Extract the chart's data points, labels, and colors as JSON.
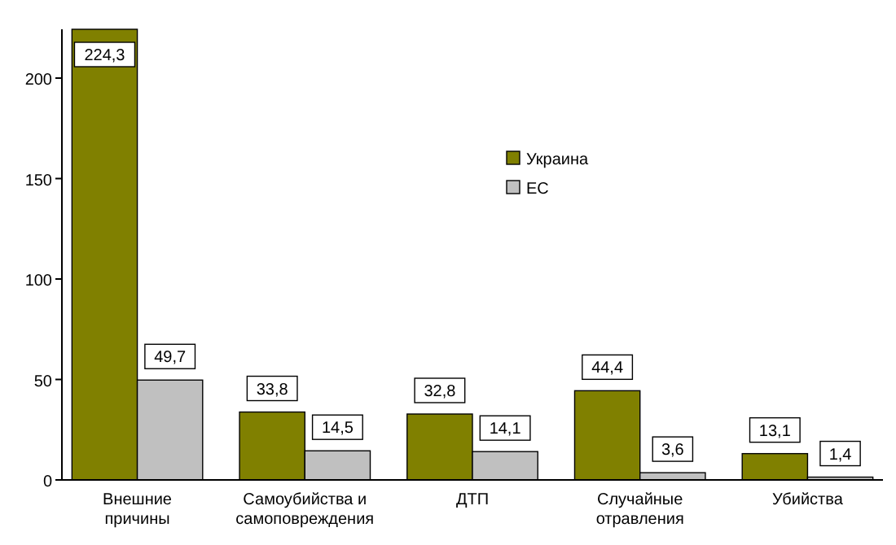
{
  "chart_data": {
    "type": "bar",
    "categories": [
      "Внешние причины",
      "Самоубийства и самоповреждения",
      "ДТП",
      "Случайные отравления",
      "Убийства"
    ],
    "series": [
      {
        "name": "Украина",
        "color": "#808000",
        "values": [
          224.3,
          33.8,
          32.8,
          44.4,
          13.1
        ],
        "value_labels": [
          "224,3",
          "33,8",
          "32,8",
          "44,4",
          "13,1"
        ]
      },
      {
        "name": "ЕС",
        "color": "#c0c0c0",
        "values": [
          49.7,
          14.5,
          14.1,
          3.6,
          1.4
        ],
        "value_labels": [
          "49,7",
          "14,5",
          "14,1",
          "3,6",
          "1,4"
        ]
      }
    ],
    "ylim": [
      0,
      224.3
    ],
    "yticks": [
      0,
      50,
      100,
      150,
      200
    ],
    "grid": false,
    "legend": "top right"
  }
}
